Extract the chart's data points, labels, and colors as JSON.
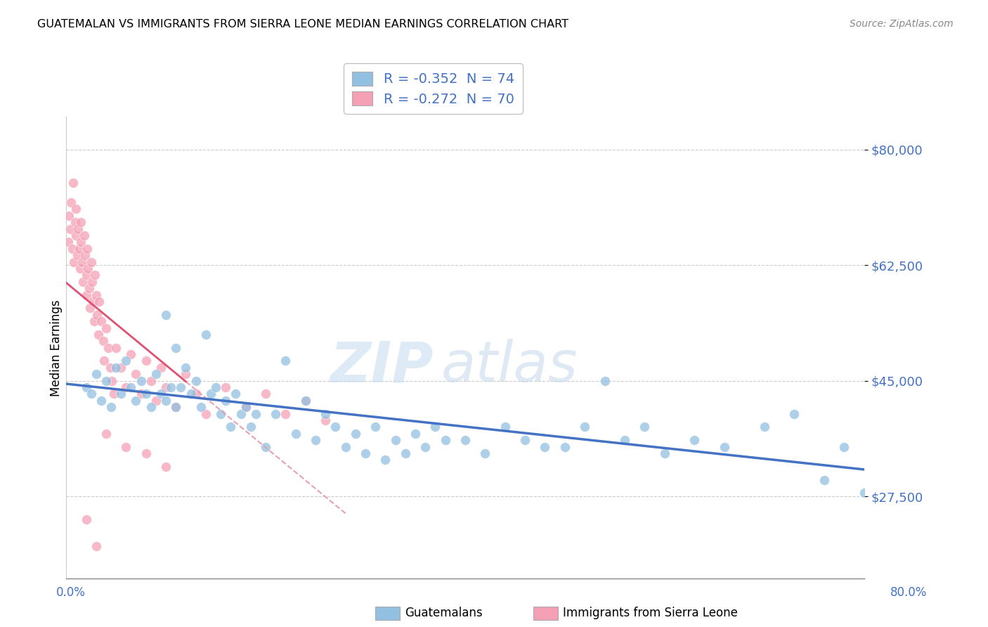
{
  "title": "GUATEMALAN VS IMMIGRANTS FROM SIERRA LEONE MEDIAN EARNINGS CORRELATION CHART",
  "source": "Source: ZipAtlas.com",
  "ylabel": "Median Earnings",
  "yticks": [
    27500,
    45000,
    62500,
    80000
  ],
  "ytick_labels": [
    "$27,500",
    "$45,000",
    "$62,500",
    "$80,000"
  ],
  "xmin": 0.0,
  "xmax": 0.8,
  "ymin": 15000,
  "ymax": 85000,
  "legend_r1": "R = -0.352  N = 74",
  "legend_r2": "R = -0.272  N = 70",
  "guatemalan_color": "#92c0e0",
  "sierra_leone_color": "#f5a0b5",
  "regression_blue": "#4472c4",
  "regression_pink": "#e05070",
  "watermark_zip": "ZIP",
  "watermark_atlas": "atlas",
  "guatemalan_x": [
    0.02,
    0.025,
    0.03,
    0.035,
    0.04,
    0.045,
    0.05,
    0.055,
    0.06,
    0.065,
    0.07,
    0.075,
    0.08,
    0.085,
    0.09,
    0.095,
    0.1,
    0.1,
    0.105,
    0.11,
    0.11,
    0.115,
    0.12,
    0.125,
    0.13,
    0.135,
    0.14,
    0.145,
    0.15,
    0.155,
    0.16,
    0.165,
    0.17,
    0.175,
    0.18,
    0.185,
    0.19,
    0.2,
    0.21,
    0.22,
    0.23,
    0.24,
    0.25,
    0.26,
    0.27,
    0.28,
    0.29,
    0.3,
    0.31,
    0.32,
    0.33,
    0.34,
    0.35,
    0.36,
    0.37,
    0.38,
    0.4,
    0.42,
    0.44,
    0.46,
    0.48,
    0.5,
    0.52,
    0.54,
    0.56,
    0.58,
    0.6,
    0.63,
    0.66,
    0.7,
    0.73,
    0.76,
    0.78,
    0.8
  ],
  "guatemalan_y": [
    44000,
    43000,
    46000,
    42000,
    45000,
    41000,
    47000,
    43000,
    48000,
    44000,
    42000,
    45000,
    43000,
    41000,
    46000,
    43000,
    55000,
    42000,
    44000,
    50000,
    41000,
    44000,
    47000,
    43000,
    45000,
    41000,
    52000,
    43000,
    44000,
    40000,
    42000,
    38000,
    43000,
    40000,
    41000,
    38000,
    40000,
    35000,
    40000,
    48000,
    37000,
    42000,
    36000,
    40000,
    38000,
    35000,
    37000,
    34000,
    38000,
    33000,
    36000,
    34000,
    37000,
    35000,
    38000,
    36000,
    36000,
    34000,
    38000,
    36000,
    35000,
    35000,
    38000,
    45000,
    36000,
    38000,
    34000,
    36000,
    35000,
    38000,
    40000,
    30000,
    35000,
    28000
  ],
  "sierra_leone_x": [
    0.002,
    0.003,
    0.004,
    0.005,
    0.006,
    0.007,
    0.008,
    0.009,
    0.01,
    0.01,
    0.011,
    0.012,
    0.013,
    0.014,
    0.015,
    0.015,
    0.016,
    0.017,
    0.018,
    0.019,
    0.02,
    0.02,
    0.021,
    0.022,
    0.023,
    0.024,
    0.025,
    0.026,
    0.027,
    0.028,
    0.029,
    0.03,
    0.031,
    0.032,
    0.033,
    0.035,
    0.037,
    0.038,
    0.04,
    0.042,
    0.044,
    0.046,
    0.048,
    0.05,
    0.055,
    0.06,
    0.065,
    0.07,
    0.075,
    0.08,
    0.085,
    0.09,
    0.095,
    0.1,
    0.11,
    0.12,
    0.13,
    0.14,
    0.16,
    0.18,
    0.2,
    0.22,
    0.24,
    0.26,
    0.04,
    0.06,
    0.08,
    0.1,
    0.02,
    0.03
  ],
  "sierra_leone_y": [
    66000,
    70000,
    68000,
    72000,
    65000,
    75000,
    63000,
    69000,
    67000,
    71000,
    64000,
    68000,
    65000,
    62000,
    69000,
    66000,
    63000,
    60000,
    67000,
    64000,
    61000,
    58000,
    65000,
    62000,
    59000,
    56000,
    63000,
    60000,
    57000,
    54000,
    61000,
    58000,
    55000,
    52000,
    57000,
    54000,
    51000,
    48000,
    53000,
    50000,
    47000,
    45000,
    43000,
    50000,
    47000,
    44000,
    49000,
    46000,
    43000,
    48000,
    45000,
    42000,
    47000,
    44000,
    41000,
    46000,
    43000,
    40000,
    44000,
    41000,
    43000,
    40000,
    42000,
    39000,
    37000,
    35000,
    34000,
    32000,
    24000,
    20000
  ]
}
